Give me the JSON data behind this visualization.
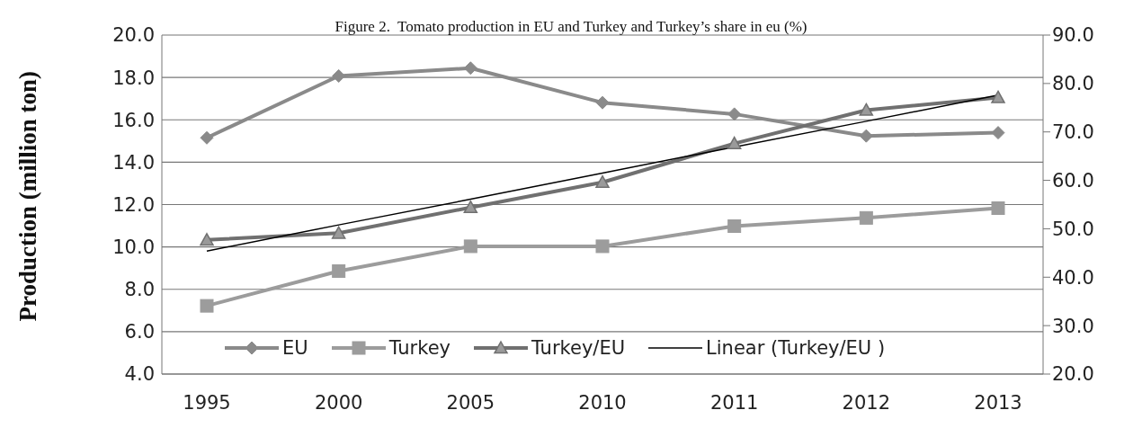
{
  "chart_data": {
    "type": "line",
    "title": "Figure 2.  Tomato production in EU and Turkey and Turkey’s share in eu (%)",
    "ylabel": "Production (million ton)",
    "categories": [
      "1995",
      "2000",
      "2005",
      "2010",
      "2011",
      "2012",
      "2013"
    ],
    "series": [
      {
        "name": "EU",
        "color": "#8a8a8a",
        "marker": "diamond",
        "values": [
          15.15,
          18.07,
          18.44,
          16.81,
          16.27,
          15.24,
          15.39
        ]
      },
      {
        "name": "Turkey",
        "color": "#9c9c9c",
        "marker": "square",
        "values": [
          7.22,
          8.86,
          10.03,
          10.03,
          10.98,
          11.37,
          11.83
        ]
      },
      {
        "name": "Turkey/EU",
        "color": "#707070",
        "marker": "triangle",
        "axis": "y2",
        "values": [
          47.7,
          49.1,
          54.4,
          59.6,
          67.6,
          74.5,
          77.1
        ]
      },
      {
        "name": "Linear (Turkey/EU )",
        "color": "#000000",
        "marker": "none",
        "axis": "y2",
        "values": [
          45.4,
          50.8,
          56.1,
          61.5,
          66.9,
          72.2,
          77.6
        ]
      }
    ],
    "ylim": [
      4,
      20
    ],
    "yticks": [
      {
        "value": 4,
        "label": "4.0"
      },
      {
        "value": 6,
        "label": "6.0"
      },
      {
        "value": 8,
        "label": "8.0"
      },
      {
        "value": 10,
        "label": "10.0"
      },
      {
        "value": 12,
        "label": "12.0"
      },
      {
        "value": 14,
        "label": "14.0"
      },
      {
        "value": 16,
        "label": "16.0"
      },
      {
        "value": 18,
        "label": "18.0"
      },
      {
        "value": 20,
        "label": "20.0"
      }
    ],
    "y2lim": [
      20,
      90
    ],
    "y2ticks": [
      {
        "value": 20,
        "label": "20.0"
      },
      {
        "value": 30,
        "label": "30.0"
      },
      {
        "value": 40,
        "label": "40.0"
      },
      {
        "value": 50,
        "label": "50.0"
      },
      {
        "value": 60,
        "label": "60.0"
      },
      {
        "value": 70,
        "label": "70.0"
      },
      {
        "value": 80,
        "label": "80.0"
      },
      {
        "value": 90,
        "label": "90.0"
      }
    ],
    "grid": "y",
    "legend": "bottom"
  }
}
